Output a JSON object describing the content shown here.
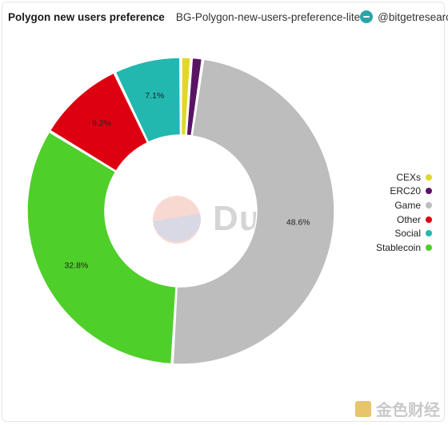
{
  "header": {
    "title": "Polygon new users preference",
    "subtitle": "BG-Polygon-new-users-preference-lite",
    "author": "@bitgetresearch"
  },
  "watermark": {
    "text": "Dune"
  },
  "corner_watermark": {
    "text": "金色财经"
  },
  "chart_data": {
    "type": "pie",
    "donut": true,
    "legend_position": "right",
    "slices": [
      {
        "name": "CEXs",
        "value": 1.1,
        "color": "#e0d828"
      },
      {
        "name": "ERC20",
        "value": 1.2,
        "color": "#5a1464"
      },
      {
        "name": "Game",
        "value": 48.6,
        "color": "#bdbdbd",
        "label": "48.6%"
      },
      {
        "name": "Stablecoin",
        "value": 32.8,
        "color": "#4fcf2a",
        "label": "32.8%"
      },
      {
        "name": "Other",
        "value": 9.2,
        "color": "#dd0010",
        "label": "9.2%"
      },
      {
        "name": "Social",
        "value": 7.1,
        "color": "#22b8b0",
        "label": "7.1%"
      }
    ],
    "legend": [
      {
        "name": "CEXs",
        "color": "#e0d828"
      },
      {
        "name": "ERC20",
        "color": "#5a1464"
      },
      {
        "name": "Game",
        "color": "#bdbdbd"
      },
      {
        "name": "Other",
        "color": "#dd0010"
      },
      {
        "name": "Social",
        "color": "#22b8b0"
      },
      {
        "name": "Stablecoin",
        "color": "#4fcf2a"
      }
    ]
  }
}
